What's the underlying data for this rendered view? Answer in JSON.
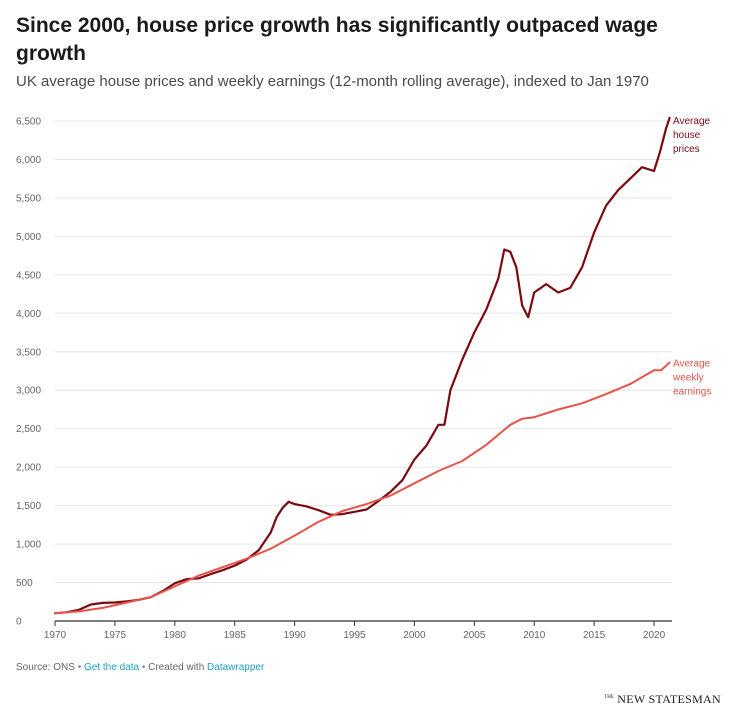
{
  "header": {
    "title": "Since 2000, house price growth has significantly outpaced wage growth",
    "subtitle": "UK average house prices and weekly earnings (12-month rolling average), indexed to Jan 1970"
  },
  "footer": {
    "source": "Source: ONS",
    "get_data": "Get the data",
    "created_with": "Created with",
    "datawrapper": "Datawrapper",
    "separator": "•"
  },
  "brand": {
    "the": "THE",
    "name": "NEW STATESMAN"
  },
  "colors": {
    "house": "#7b0a12",
    "earnings": "#e8524a",
    "grid": "#e5e5e5",
    "axis": "#333333"
  },
  "chart_data": {
    "type": "line",
    "title": "Since 2000, house price growth has significantly outpaced wage growth",
    "subtitle": "UK average house prices and weekly earnings (12-month rolling average), indexed to Jan 1970",
    "xlabel": "",
    "ylabel": "",
    "xlim": [
      1970,
      2021.5
    ],
    "ylim": [
      0,
      6500
    ],
    "x_ticks": [
      1970,
      1975,
      1980,
      1985,
      1990,
      1995,
      2000,
      2005,
      2010,
      2015,
      2020
    ],
    "y_ticks": [
      {
        "value": 0,
        "label": "0"
      },
      {
        "value": 500,
        "label": "500"
      },
      {
        "value": 1000,
        "label": "1,000"
      },
      {
        "value": 1500,
        "label": "1,500"
      },
      {
        "value": 2000,
        "label": "2,000"
      },
      {
        "value": 2500,
        "label": "2,500"
      },
      {
        "value": 3000,
        "label": "3,000"
      },
      {
        "value": 3500,
        "label": "3,500"
      },
      {
        "value": 4000,
        "label": "4,000"
      },
      {
        "value": 4500,
        "label": "4,500"
      },
      {
        "value": 5000,
        "label": "5,000"
      },
      {
        "value": 5500,
        "label": "5,500"
      },
      {
        "value": 6000,
        "label": "6,000"
      },
      {
        "value": 6500,
        "label": "6,500"
      }
    ],
    "grid": true,
    "series": [
      {
        "name": "Average house prices",
        "label_lines": [
          "Average",
          "house",
          "prices"
        ],
        "color": "#7b0a12",
        "x": [
          1970,
          1971,
          1972,
          1973,
          1974,
          1975,
          1976,
          1977,
          1978,
          1979,
          1980,
          1981,
          1982,
          1983,
          1984,
          1985,
          1986,
          1987,
          1988,
          1988.5,
          1989,
          1989.5,
          1990,
          1991,
          1992,
          1993,
          1994,
          1995,
          1996,
          1997,
          1998,
          1999,
          2000,
          2001,
          2002,
          2002.5,
          2003,
          2004,
          2005,
          2006,
          2007,
          2007.5,
          2008,
          2008.5,
          2009,
          2009.5,
          2010,
          2011,
          2012,
          2013,
          2014,
          2015,
          2016,
          2017,
          2018,
          2019,
          2020,
          2020.5,
          2021,
          2021.3
        ],
        "values": [
          100,
          115,
          145,
          215,
          235,
          240,
          255,
          275,
          310,
          390,
          490,
          545,
          555,
          610,
          660,
          720,
          800,
          920,
          1150,
          1350,
          1470,
          1550,
          1520,
          1490,
          1440,
          1380,
          1390,
          1420,
          1450,
          1560,
          1680,
          1830,
          2100,
          2280,
          2550,
          2550,
          3000,
          3400,
          3750,
          4050,
          4450,
          4830,
          4800,
          4600,
          4100,
          3950,
          4270,
          4380,
          4270,
          4330,
          4600,
          5050,
          5400,
          5600,
          5750,
          5900,
          5850,
          6100,
          6400,
          6540
        ]
      },
      {
        "name": "Average weekly earnings",
        "label_lines": [
          "Average",
          "weekly",
          "earnings"
        ],
        "color": "#e8524a",
        "x": [
          1970,
          1972,
          1974,
          1976,
          1978,
          1980,
          1982,
          1984,
          1986,
          1988,
          1990,
          1992,
          1994,
          1996,
          1998,
          2000,
          2002,
          2004,
          2006,
          2008,
          2009,
          2010,
          2012,
          2014,
          2016,
          2018,
          2020,
          2020.6,
          2021.3
        ],
        "values": [
          100,
          125,
          170,
          240,
          310,
          450,
          590,
          700,
          810,
          940,
          1110,
          1290,
          1430,
          1520,
          1630,
          1790,
          1950,
          2080,
          2290,
          2550,
          2630,
          2650,
          2750,
          2830,
          2950,
          3080,
          3260,
          3260,
          3360
        ]
      }
    ]
  }
}
